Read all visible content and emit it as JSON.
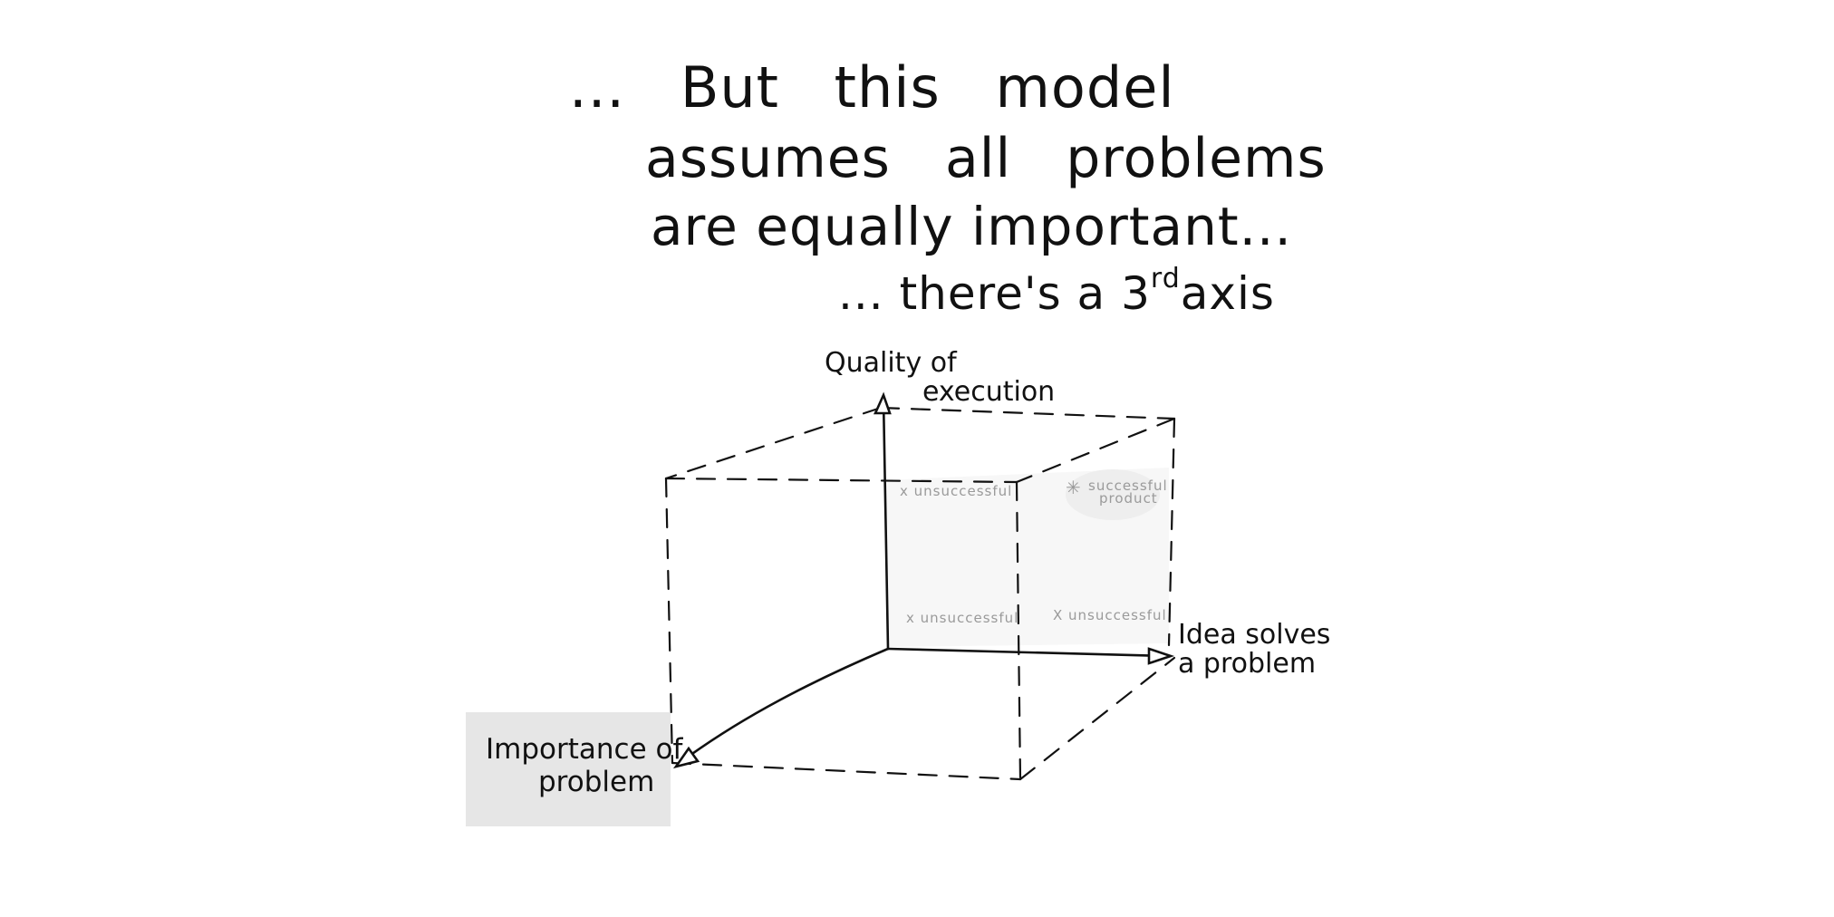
{
  "heading": {
    "line1": "... But this model",
    "line2": "assumes all problems",
    "line3": "are equally important...",
    "line4_prefix": "... there's a 3",
    "line4_sup": "rd",
    "line4_suffix": "axis"
  },
  "axes": {
    "vertical_line1": "Quality of",
    "vertical_line2": "execution",
    "horizontal_line1": "Idea solves",
    "horizontal_line2": "a problem",
    "depth_line1": "Importance of",
    "depth_line2": "problem"
  },
  "quadrants": {
    "top_left": "x unsuccessful",
    "bottom_left": "x unsuccessful",
    "bottom_right": "X unsuccessful",
    "top_right_line1": "successful",
    "top_right_line2": "product",
    "top_right_icon": "asterisk-icon"
  },
  "colors": {
    "ink": "#111111",
    "quadrant_text": "#9a9a9a",
    "plane_fill": "#f7f7f7",
    "highlight": "#e6e6e6"
  }
}
